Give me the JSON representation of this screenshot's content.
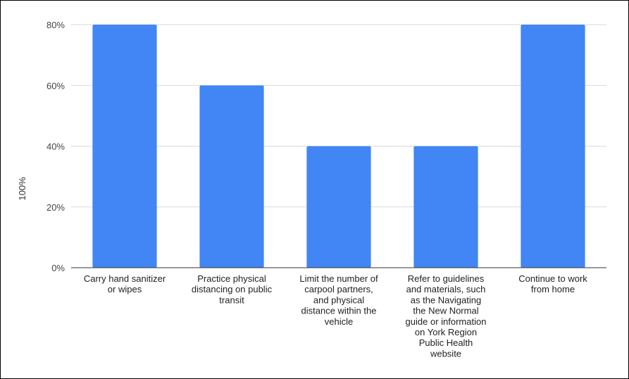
{
  "chart_data": {
    "type": "bar",
    "ylabel": "100%",
    "ylim": [
      0,
      80
    ],
    "yticks": [
      "0%",
      "20%",
      "40%",
      "60%",
      "80%"
    ],
    "grid": true,
    "bar_color": "#4285f4",
    "categories": [
      [
        "Carry hand sanitizer",
        "or wipes"
      ],
      [
        "Practice physical",
        "distancing on public",
        "transit"
      ],
      [
        "Limit the number of",
        "carpool partners,",
        "and physical",
        "distance within the",
        "vehicle"
      ],
      [
        "Refer to guidelines",
        "and materials, such",
        "as the Navigating",
        "the New Normal",
        "guide or information",
        "on York Region",
        "Public Health",
        "website"
      ],
      [
        "Continue to work",
        "from home"
      ]
    ],
    "values": [
      80,
      60,
      40,
      40,
      80
    ]
  }
}
